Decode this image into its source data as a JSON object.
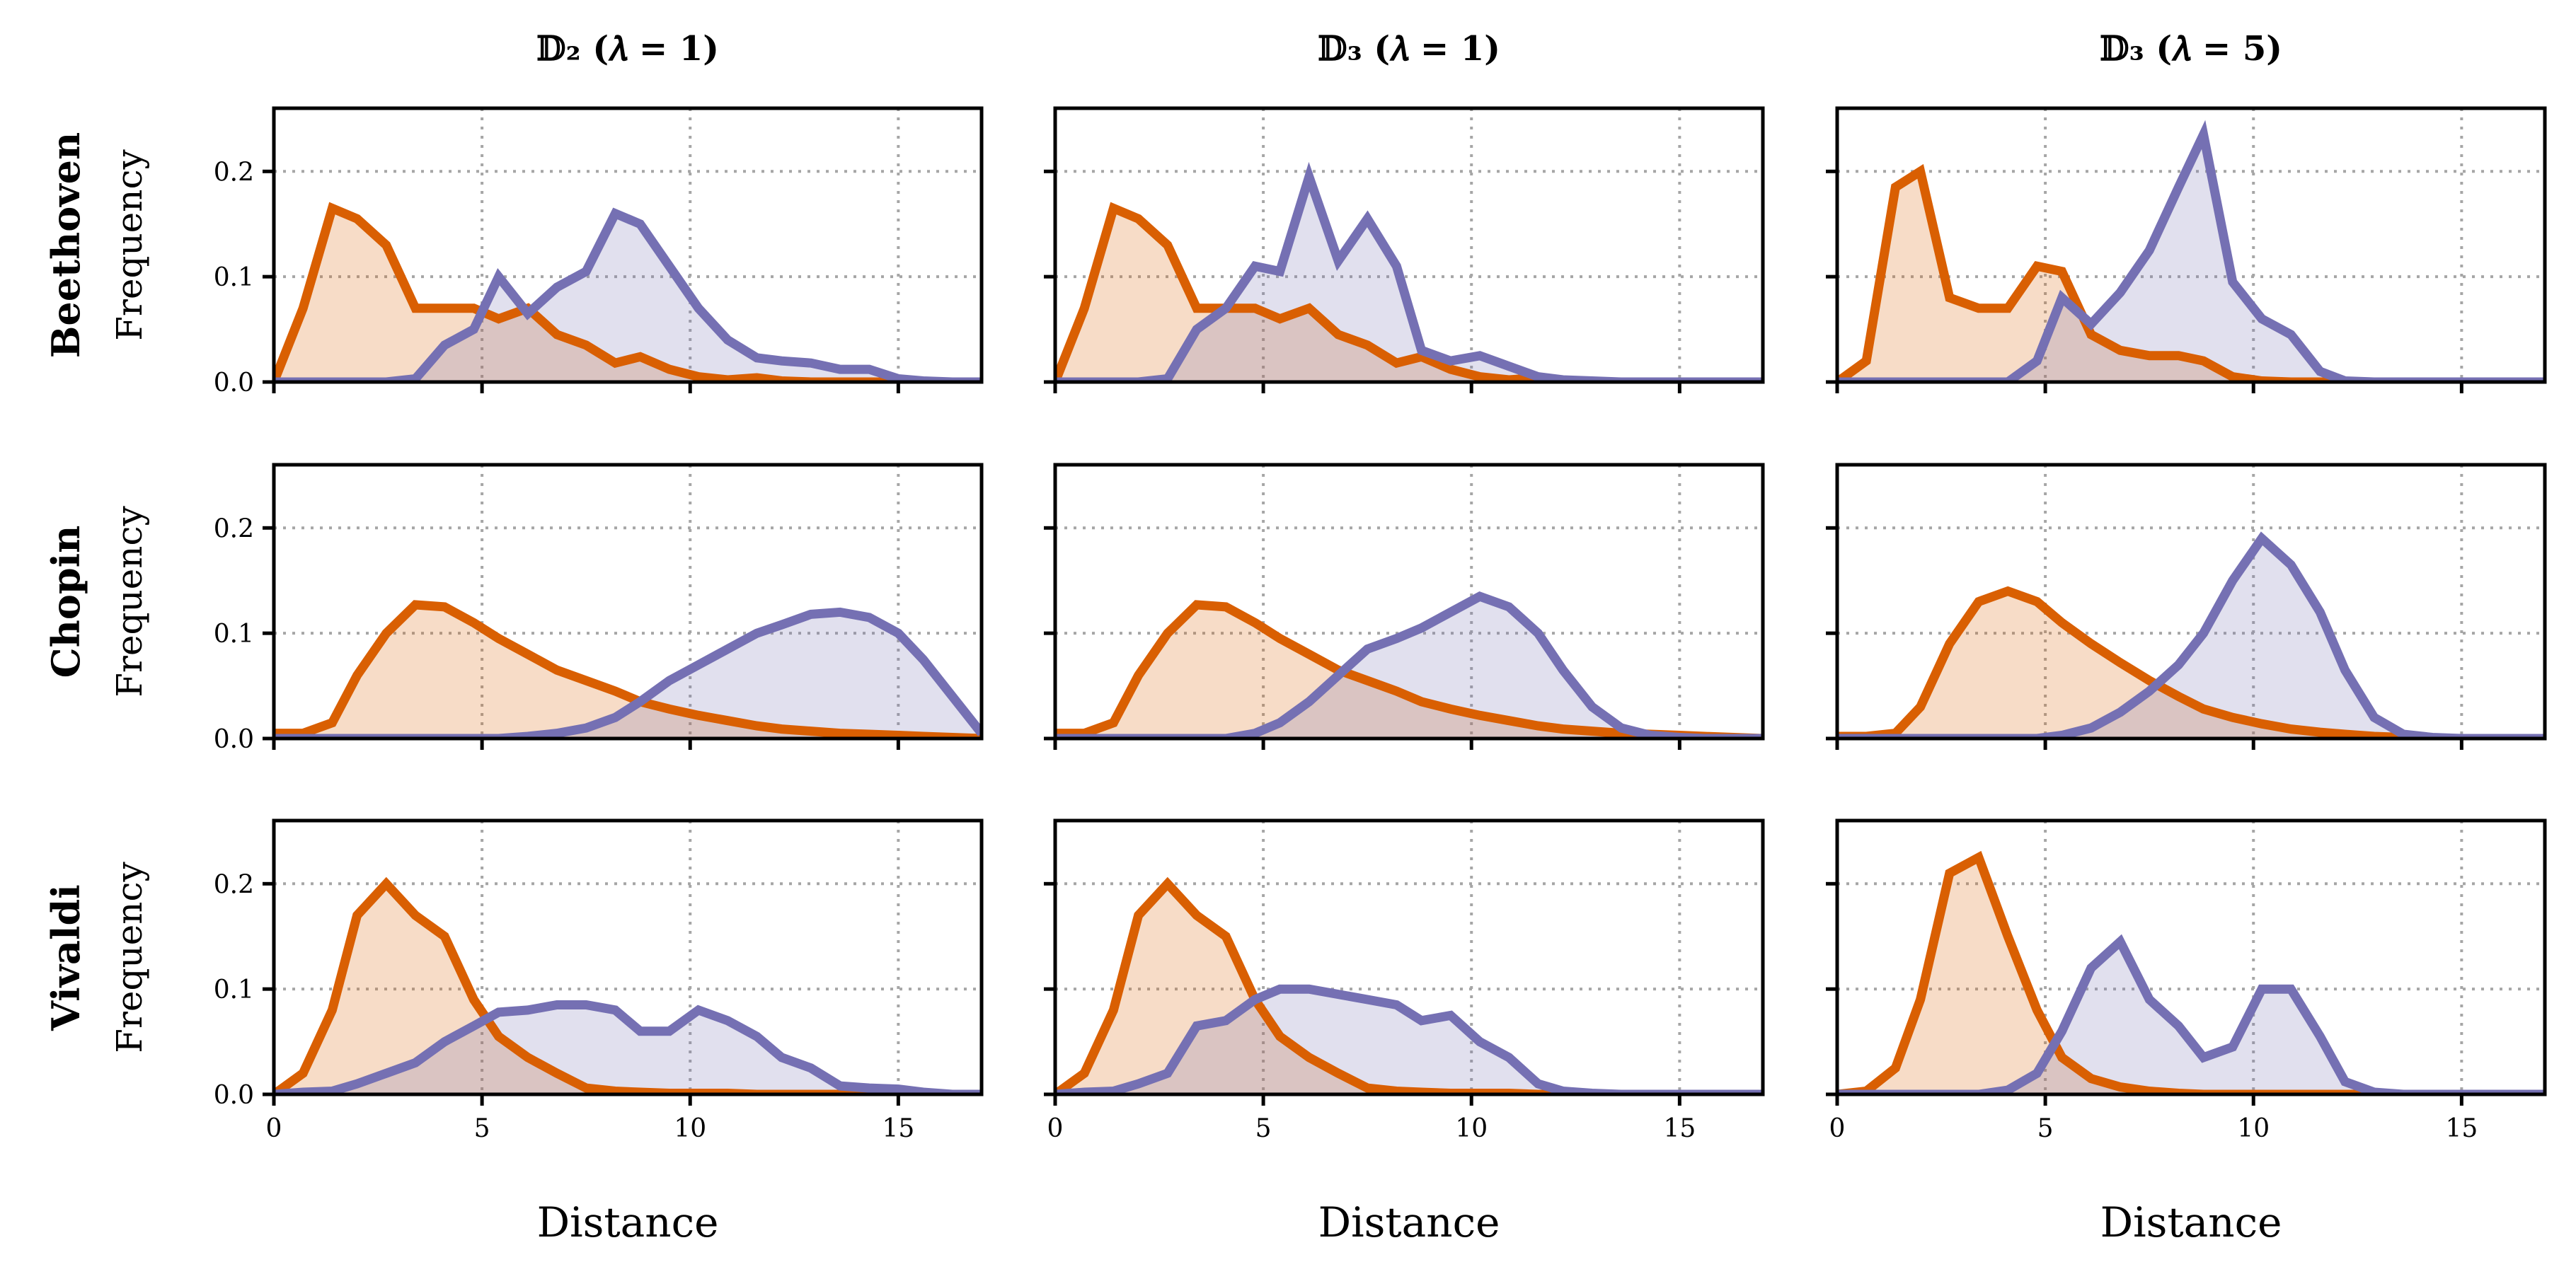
{
  "chart_data": {
    "type": "area",
    "layout": "3x3 grid of panels",
    "x": [
      0,
      0.7,
      1.4,
      2.0,
      2.7,
      3.4,
      4.1,
      4.8,
      5.4,
      6.1,
      6.8,
      7.5,
      8.2,
      8.8,
      9.5,
      10.2,
      10.9,
      11.6,
      12.2,
      12.9,
      13.6,
      14.3,
      15.0,
      15.6,
      16.3,
      17.0
    ],
    "xlim": [
      0,
      17
    ],
    "ylim": [
      0,
      0.26
    ],
    "xticks": [
      0,
      5,
      10,
      15
    ],
    "xtick_labels": [
      "0",
      "5",
      "10",
      "15"
    ],
    "yticks": [
      0,
      0.1,
      0.2
    ],
    "ytick_labels": [
      "0.0",
      "0.1",
      "0.2"
    ],
    "xlabel": "Distance",
    "ylabel": "Frequency",
    "grid": true,
    "column_titles": [
      "𝔻₂ (𝜆 = 1)",
      "𝔻₃ (𝜆 = 1)",
      "𝔻₃ (𝜆 = 5)"
    ],
    "row_titles": [
      "Beethoven",
      "Chopin",
      "Vivaldi"
    ],
    "series_colors": [
      "#d95f02",
      "#7570b3"
    ],
    "fill_colors": [
      "#f9d9c5",
      "#e1dff0"
    ],
    "panels": [
      {
        "row": 0,
        "col": 0,
        "series": [
          {
            "values": [
              0,
              0.07,
              0.165,
              0.155,
              0.13,
              0.07,
              0.07,
              0.07,
              0.06,
              0.07,
              0.045,
              0.035,
              0.018,
              0.024,
              0.012,
              0.005,
              0.002,
              0.004,
              0.001,
              0,
              0,
              0,
              0,
              0,
              0,
              0
            ]
          },
          {
            "values": [
              0,
              0,
              0,
              0,
              0,
              0.003,
              0.035,
              0.05,
              0.1,
              0.065,
              0.09,
              0.105,
              0.16,
              0.15,
              0.11,
              0.07,
              0.04,
              0.023,
              0.02,
              0.018,
              0.012,
              0.012,
              0.003,
              0.001,
              0,
              0
            ]
          }
        ]
      },
      {
        "row": 0,
        "col": 1,
        "series": [
          {
            "values": [
              0,
              0.07,
              0.165,
              0.155,
              0.13,
              0.07,
              0.07,
              0.07,
              0.06,
              0.07,
              0.045,
              0.035,
              0.018,
              0.024,
              0.012,
              0.005,
              0.002,
              0.004,
              0.001,
              0,
              0,
              0,
              0,
              0,
              0,
              0
            ]
          },
          {
            "values": [
              0,
              0,
              0,
              0,
              0.003,
              0.05,
              0.07,
              0.11,
              0.105,
              0.195,
              0.115,
              0.155,
              0.11,
              0.03,
              0.02,
              0.025,
              0.015,
              0.005,
              0.002,
              0.001,
              0,
              0,
              0,
              0,
              0,
              0
            ]
          }
        ]
      },
      {
        "row": 0,
        "col": 2,
        "series": [
          {
            "values": [
              0,
              0.02,
              0.185,
              0.2,
              0.08,
              0.07,
              0.07,
              0.11,
              0.105,
              0.045,
              0.03,
              0.025,
              0.025,
              0.02,
              0.005,
              0.001,
              0,
              0,
              0,
              0,
              0,
              0,
              0,
              0,
              0,
              0
            ]
          },
          {
            "values": [
              0,
              0,
              0,
              0,
              0,
              0,
              0,
              0.02,
              0.08,
              0.055,
              0.085,
              0.125,
              0.185,
              0.235,
              0.095,
              0.06,
              0.045,
              0.01,
              0.001,
              0,
              0,
              0,
              0,
              0,
              0,
              0
            ]
          }
        ]
      },
      {
        "row": 1,
        "col": 0,
        "series": [
          {
            "values": [
              0.005,
              0.005,
              0.015,
              0.06,
              0.1,
              0.127,
              0.125,
              0.11,
              0.095,
              0.08,
              0.065,
              0.055,
              0.045,
              0.035,
              0.028,
              0.022,
              0.017,
              0.012,
              0.009,
              0.007,
              0.005,
              0.004,
              0.003,
              0.002,
              0.001,
              0
            ]
          },
          {
            "values": [
              0,
              0,
              0,
              0,
              0,
              0,
              0,
              0,
              0,
              0.002,
              0.005,
              0.01,
              0.02,
              0.035,
              0.055,
              0.07,
              0.085,
              0.1,
              0.108,
              0.118,
              0.12,
              0.115,
              0.1,
              0.075,
              0.04,
              0.005
            ]
          }
        ]
      },
      {
        "row": 1,
        "col": 1,
        "series": [
          {
            "values": [
              0.005,
              0.005,
              0.015,
              0.06,
              0.1,
              0.127,
              0.125,
              0.11,
              0.095,
              0.08,
              0.065,
              0.055,
              0.045,
              0.035,
              0.028,
              0.022,
              0.017,
              0.012,
              0.009,
              0.007,
              0.005,
              0.004,
              0.003,
              0.002,
              0.001,
              0
            ]
          },
          {
            "values": [
              0,
              0,
              0,
              0,
              0,
              0,
              0,
              0.005,
              0.015,
              0.035,
              0.06,
              0.085,
              0.095,
              0.105,
              0.12,
              0.135,
              0.125,
              0.1,
              0.065,
              0.03,
              0.01,
              0.003,
              0.001,
              0,
              0,
              0
            ]
          }
        ]
      },
      {
        "row": 1,
        "col": 2,
        "series": [
          {
            "values": [
              0.002,
              0.002,
              0.005,
              0.03,
              0.09,
              0.13,
              0.14,
              0.13,
              0.11,
              0.09,
              0.072,
              0.055,
              0.04,
              0.028,
              0.02,
              0.014,
              0.009,
              0.006,
              0.004,
              0.002,
              0.001,
              0,
              0,
              0,
              0,
              0
            ]
          },
          {
            "values": [
              0,
              0,
              0,
              0,
              0,
              0,
              0,
              0,
              0.003,
              0.01,
              0.025,
              0.045,
              0.07,
              0.1,
              0.15,
              0.19,
              0.165,
              0.12,
              0.065,
              0.02,
              0.004,
              0.001,
              0,
              0,
              0,
              0
            ]
          }
        ]
      },
      {
        "row": 2,
        "col": 0,
        "series": [
          {
            "values": [
              0,
              0.02,
              0.08,
              0.17,
              0.2,
              0.17,
              0.15,
              0.09,
              0.055,
              0.035,
              0.02,
              0.006,
              0.003,
              0.002,
              0.001,
              0.001,
              0.001,
              0,
              0,
              0,
              0,
              0,
              0,
              0,
              0,
              0
            ]
          },
          {
            "values": [
              0,
              0.002,
              0.003,
              0.01,
              0.02,
              0.03,
              0.05,
              0.065,
              0.078,
              0.08,
              0.085,
              0.085,
              0.08,
              0.06,
              0.06,
              0.08,
              0.07,
              0.055,
              0.035,
              0.025,
              0.008,
              0.006,
              0.005,
              0.002,
              0,
              0
            ]
          }
        ]
      },
      {
        "row": 2,
        "col": 1,
        "series": [
          {
            "values": [
              0,
              0.02,
              0.08,
              0.17,
              0.2,
              0.17,
              0.15,
              0.09,
              0.055,
              0.035,
              0.02,
              0.006,
              0.003,
              0.002,
              0.001,
              0.001,
              0.001,
              0,
              0,
              0,
              0,
              0,
              0,
              0,
              0,
              0
            ]
          },
          {
            "values": [
              0,
              0.002,
              0.003,
              0.01,
              0.02,
              0.065,
              0.07,
              0.09,
              0.1,
              0.1,
              0.095,
              0.09,
              0.085,
              0.07,
              0.075,
              0.05,
              0.035,
              0.01,
              0.003,
              0.001,
              0,
              0,
              0,
              0,
              0,
              0
            ]
          }
        ]
      },
      {
        "row": 2,
        "col": 2,
        "series": [
          {
            "values": [
              0,
              0.003,
              0.025,
              0.09,
              0.21,
              0.225,
              0.15,
              0.08,
              0.035,
              0.015,
              0.007,
              0.003,
              0.001,
              0,
              0,
              0,
              0,
              0,
              0,
              0,
              0,
              0,
              0,
              0,
              0,
              0
            ]
          },
          {
            "values": [
              0,
              0,
              0,
              0,
              0,
              0,
              0.004,
              0.02,
              0.06,
              0.12,
              0.145,
              0.09,
              0.065,
              0.035,
              0.045,
              0.1,
              0.1,
              0.055,
              0.012,
              0.002,
              0,
              0,
              0,
              0,
              0,
              0
            ]
          }
        ]
      }
    ]
  }
}
